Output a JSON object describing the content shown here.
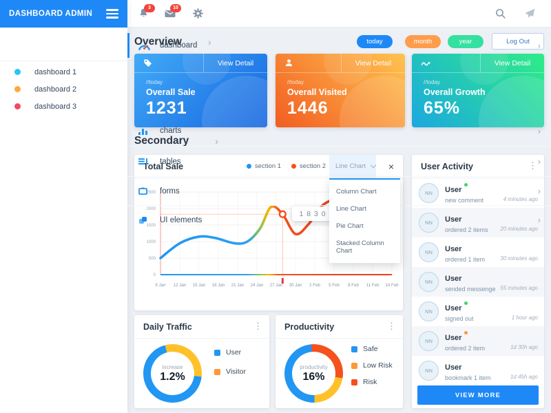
{
  "icons": {
    "chevron_right": "›",
    "kebab": "⋮",
    "close": "×"
  },
  "app": {
    "title": "DASHBOARD ADMIN"
  },
  "topbar": {
    "bell_badge": "3",
    "mail_badge": "10"
  },
  "sidebar": {
    "items": [
      {
        "label": "dashboard"
      },
      {
        "label": "dashboard 1",
        "dot": "#29c5f6"
      },
      {
        "label": "dashboard 2",
        "dot": "#ffa83d"
      },
      {
        "label": "dashboard 3",
        "dot": "#f8485e"
      },
      {
        "label": "charts"
      },
      {
        "label": "tables"
      },
      {
        "label": "forms"
      },
      {
        "label": "UI elements"
      }
    ]
  },
  "overview": {
    "title": "Overview",
    "pills": [
      {
        "label": "today",
        "color": "#1e88f7"
      },
      {
        "label": "month",
        "color": "#ff9d4d"
      },
      {
        "label": "year",
        "color": "#35e0a1"
      }
    ],
    "logout_label": "Log Out"
  },
  "stat_cards": [
    {
      "period": "//today",
      "label": "Overall Sale",
      "value": "1231",
      "action": "View Detail",
      "accent_from": "#41abf7",
      "accent_to": "#1565e0"
    },
    {
      "period": "//today",
      "label": "Overall Visited",
      "value": "1446",
      "action": "View Detail",
      "accent_from": "#f25d22",
      "accent_to": "#ffc34f"
    },
    {
      "period": "//today",
      "label": "Overall Growth",
      "value": "65%",
      "action": "View Detail",
      "accent_from": "#1ba8e0",
      "accent_to": "#2ee98b"
    }
  ],
  "secondary": {
    "title": "Secondary"
  },
  "total_sale": {
    "title": "Total Sale",
    "legend": [
      {
        "label": "section 1",
        "color": "#2196f3"
      },
      {
        "label": "section 2",
        "color": "#f4511e"
      }
    ],
    "selector": {
      "value": "Line Chart",
      "options": [
        "Column Chart",
        "Line Chart",
        "Pie Chart",
        "Stacked Column Chart"
      ]
    },
    "tooltip": "1 8 3 0"
  },
  "chart_data": [
    {
      "type": "line",
      "title": "Total Sale",
      "legend": [
        "section 1",
        "section 2"
      ],
      "x_tick_labels": [
        "9 Jan",
        "12 Jan",
        "15 Jan",
        "18 Jan",
        "21 Jan",
        "24 Jan",
        "27 Jan",
        "30 Jan",
        "2 Feb",
        "5 Feb",
        "8 Feb",
        "11 Feb",
        "14 Feb"
      ],
      "y_tick_labels": [
        "2500",
        "2000",
        "1500",
        "1000",
        "500",
        "0"
      ],
      "ylim": [
        0,
        2500
      ],
      "grid": true,
      "series": [
        {
          "name": "total sale",
          "points": [
            {
              "day": 0,
              "value": 500
            },
            {
              "day": 3,
              "value": 950
            },
            {
              "day": 6,
              "value": 1150
            },
            {
              "day": 8.5,
              "value": 1110
            },
            {
              "day": 11.5,
              "value": 950
            },
            {
              "day": 13.5,
              "value": 1000
            },
            {
              "day": 15.5,
              "value": 1400
            },
            {
              "day": 17.2,
              "value": 2050
            },
            {
              "day": 19,
              "value": 1830
            },
            {
              "day": 21,
              "value": 1230
            },
            {
              "day": 23,
              "value": 1520
            },
            {
              "day": 25,
              "value": 2060
            },
            {
              "day": 26.8,
              "value": 2280
            }
          ]
        }
      ],
      "highlight": {
        "day": 19,
        "value": 1830,
        "label": "1 8 3 0"
      },
      "line_gradient": [
        "#2196f3",
        "#8bc34a",
        "#ffb300",
        "#f4511e"
      ]
    },
    {
      "type": "donut",
      "title": "Daily Traffic",
      "center_label": "increase",
      "center_value": "1.2%",
      "start_deg": -15,
      "segments": [
        {
          "label": "Visitor",
          "value": 31,
          "color": "#ffc12a"
        },
        {
          "label": "User",
          "value": 69,
          "color": "#2196f3"
        }
      ],
      "legend": [
        {
          "label": "User",
          "color": "#2196f3"
        },
        {
          "label": "Visitor",
          "color": "#ff9838"
        }
      ]
    },
    {
      "type": "donut",
      "title": "Productivity",
      "center_label": "productivity",
      "center_value": "16%",
      "start_deg": -5,
      "segments": [
        {
          "label": "Risk",
          "value": 29,
          "color": "#f4511e"
        },
        {
          "label": "Low Risk",
          "value": 22,
          "color": "#ffc12a"
        },
        {
          "label": "Safe",
          "value": 49,
          "color": "#2196f3"
        }
      ],
      "legend": [
        {
          "label": "Safe",
          "color": "#2196f3"
        },
        {
          "label": "Low Risk",
          "color": "#ff9838"
        },
        {
          "label": "Risk",
          "color": "#f4511e"
        }
      ]
    }
  ],
  "user_activity": {
    "title": "User Activity",
    "items": [
      {
        "avatar": "NN",
        "name": "User",
        "status": "#43d160",
        "action": "new comment",
        "time": "4 minutes ago"
      },
      {
        "avatar": "NN",
        "name": "User",
        "status": "",
        "action": "ordered 2 items",
        "time": "20 minutes ago"
      },
      {
        "avatar": "NN",
        "name": "User",
        "status": "",
        "action": "ordered 1 item",
        "time": "30 minutes ago"
      },
      {
        "avatar": "NN",
        "name": "User",
        "status": "",
        "action": "sended messenge",
        "time": "55 minutes ago"
      },
      {
        "avatar": "NN",
        "name": "User",
        "status": "#43d160",
        "action": "signed out",
        "time": "1 hour ago"
      },
      {
        "avatar": "NN",
        "name": "User",
        "status": "#ff9838",
        "action": "ordered 2 item",
        "time": "1d 30h ago"
      },
      {
        "avatar": "NN",
        "name": "User",
        "status": "",
        "action": "bookmark 1 item",
        "time": "1d 45h ago"
      }
    ],
    "view_more": "VIEW MORE"
  }
}
